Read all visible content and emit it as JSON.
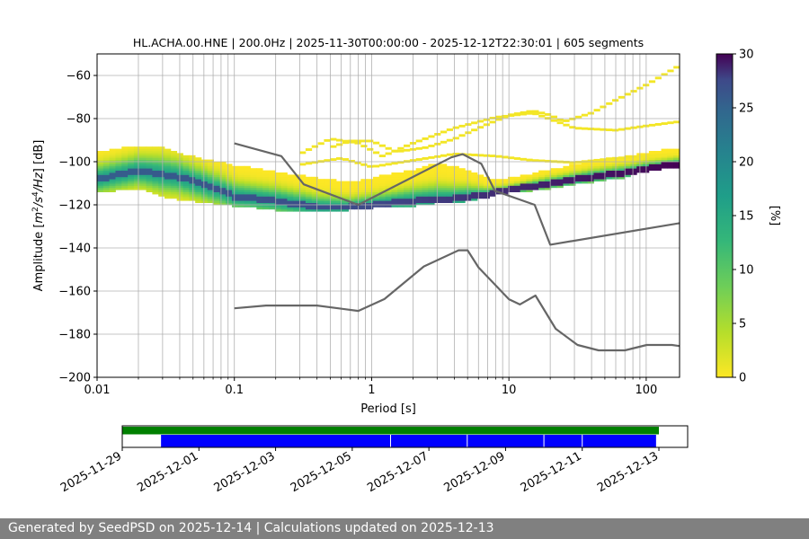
{
  "chart_data": [
    {
      "type": "heatmap",
      "title": "HL.ACHA.00.HNE | 200.0Hz | 2025-11-30T00:00:00 - 2025-12-12T22:30:01 | 605 segments",
      "xlabel": "Period [s]",
      "ylabel_parts": [
        "Amplitude [",
        "m",
        "2",
        "/",
        "s",
        "4",
        "/",
        "Hz",
        "] [dB]"
      ],
      "xscale": "log",
      "xlim": [
        0.01,
        175
      ],
      "ylim": [
        -200,
        -50
      ],
      "xticks": [
        {
          "v": 0.01,
          "label": "0.01"
        },
        {
          "v": 0.1,
          "label": "0.1"
        },
        {
          "v": 1,
          "label": "1"
        },
        {
          "v": 10,
          "label": "10"
        },
        {
          "v": 100,
          "label": "100"
        }
      ],
      "yticks": [
        {
          "v": -60,
          "label": "−60"
        },
        {
          "v": -80,
          "label": "−80"
        },
        {
          "v": -100,
          "label": "−100"
        },
        {
          "v": -120,
          "label": "−120"
        },
        {
          "v": -140,
          "label": "−140"
        },
        {
          "v": -160,
          "label": "−160"
        },
        {
          "v": -180,
          "label": "−180"
        },
        {
          "v": -200,
          "label": "−200"
        }
      ],
      "grid": true,
      "colormap": "viridis_r",
      "colorbar": {
        "label": "[%]",
        "range": [
          0,
          30
        ],
        "ticks": [
          "0",
          "5",
          "10",
          "15",
          "20",
          "25",
          "30"
        ]
      },
      "mode_curve": {
        "x": [
          0.01,
          0.02,
          0.04,
          0.07,
          0.1,
          0.2,
          0.4,
          0.7,
          1,
          2,
          4,
          7,
          10,
          20,
          40,
          70,
          100,
          175
        ],
        "y": [
          -108,
          -104,
          -107,
          -112,
          -116,
          -118,
          -121,
          -121,
          -120,
          -118,
          -117,
          -115,
          -113,
          -110,
          -107,
          -105,
          -103,
          -101
        ]
      },
      "spread_band": {
        "x": [
          0.01,
          0.02,
          0.03,
          0.05,
          0.1,
          0.2,
          0.4,
          0.7,
          1,
          2,
          3,
          5,
          7,
          10,
          20,
          40,
          70,
          100,
          175
        ],
        "upper": [
          -96,
          -93,
          -94,
          -98,
          -102,
          -105,
          -108,
          -110,
          -108,
          -104,
          -101,
          -104,
          -108,
          -108,
          -104,
          -100,
          -98,
          -96,
          -94
        ],
        "lower": [
          -114,
          -112,
          -116,
          -118,
          -120,
          -122,
          -123,
          -122,
          -121,
          -120,
          -119,
          -118,
          -116,
          -114,
          -112,
          -109,
          -107,
          -104,
          -102
        ]
      },
      "outlier_traces": [
        {
          "x": [
            0.5,
            0.7,
            1,
            1.5,
            2.5,
            4,
            6,
            10,
            15,
            20,
            25,
            40,
            60,
            100,
            175
          ],
          "y": [
            -94,
            -91,
            -91,
            -96,
            -94,
            -90,
            -85,
            -79,
            -77,
            -79,
            -82,
            -78,
            -72,
            -65,
            -56
          ]
        },
        {
          "x": [
            0.3,
            0.5,
            0.8,
            1.2,
            2,
            4,
            8,
            15,
            30,
            60,
            100,
            175
          ],
          "y": [
            -97,
            -90,
            -92,
            -98,
            -92,
            -85,
            -80,
            -78,
            -85,
            -86,
            -84,
            -82
          ]
        },
        {
          "x": [
            0.3,
            0.6,
            1,
            2,
            4,
            8,
            15,
            30,
            60,
            100,
            175
          ],
          "y": [
            -102,
            -99,
            -103,
            -100,
            -97,
            -98,
            -100,
            -101,
            -99,
            -98,
            -97
          ]
        }
      ],
      "nhnm": {
        "x": [
          0.1,
          0.22,
          0.32,
          0.8,
          3.8,
          4.6,
          6.3,
          7.9,
          15.4,
          20,
          175
        ],
        "y": [
          -91.5,
          -97.4,
          -110.5,
          -120,
          -98,
          -96.5,
          -101,
          -113.5,
          -120,
          -138.5,
          -128.5
        ]
      },
      "nlnm": {
        "x": [
          0.1,
          0.17,
          0.4,
          0.8,
          1.24,
          2.4,
          4.3,
          5,
          6,
          10,
          12,
          15.6,
          21.9,
          31.6,
          45,
          70,
          101,
          154,
          175
        ],
        "y": [
          -168,
          -166.7,
          -166.7,
          -169.2,
          -163.7,
          -148.6,
          -141.1,
          -141.1,
          -149,
          -163.8,
          -166.2,
          -162.1,
          -177.5,
          -185,
          -187.5,
          -187.5,
          -185,
          -185,
          -185.5
        ]
      }
    },
    {
      "type": "timeline",
      "xlim": [
        "2025-11-29T00:00:00",
        "2025-12-13T18:00:00"
      ],
      "xticks": [
        "2025-11-29",
        "2025-12-01",
        "2025-12-03",
        "2025-12-05",
        "2025-12-07",
        "2025-12-09",
        "2025-12-11",
        "2025-12-13"
      ],
      "available": {
        "color": "#008000",
        "spans": [
          [
            "2025-11-29T00:00:00",
            "2025-12-13T00:00:00"
          ]
        ]
      },
      "used": {
        "color": "#0000ff",
        "spans": [
          [
            "2025-11-30T00:00:00",
            "2025-12-06T00:00:00"
          ],
          [
            "2025-12-06T00:00:00",
            "2025-12-08T00:00:00"
          ],
          [
            "2025-12-08T00:00:00",
            "2025-12-10T00:00:00"
          ],
          [
            "2025-12-10T00:00:00",
            "2025-12-11T00:00:00"
          ],
          [
            "2025-12-11T00:00:00",
            "2025-12-12T22:30:01"
          ]
        ]
      }
    }
  ],
  "footer": {
    "text": "Generated by SeedPSD on 2025-12-14 | Calculations updated on 2025-12-13"
  }
}
